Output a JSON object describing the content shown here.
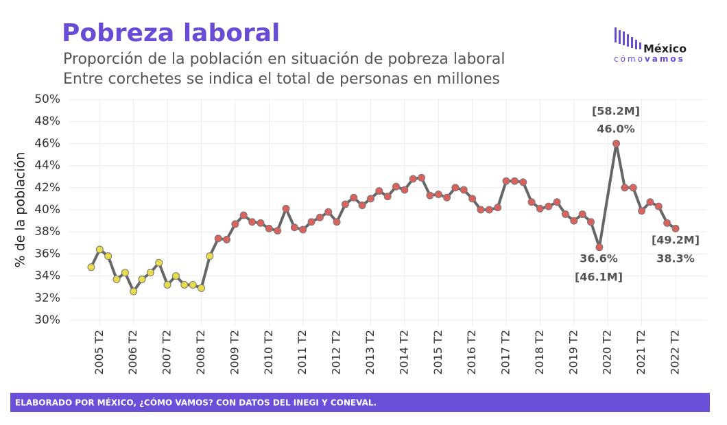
{
  "chart_data": {
    "type": "line",
    "title": "Pobreza laboral",
    "subtitle": [
      "Proporción de la población en situación de pobreza laboral",
      "Entre corchetes se indica el total de personas en millones"
    ],
    "y_label": "% de la población",
    "source": "ELABORADO POR MÉXICO, ¿CÓMO VAMOS? CON DATOS DEL INEGI Y CONEVAL.",
    "logo": {
      "name": "México",
      "tagline_light": "cómo",
      "tagline_bold": "vamos"
    },
    "categories": [
      null,
      "2005 T2",
      null,
      null,
      null,
      "2006 T2",
      null,
      null,
      null,
      "2007 T2",
      null,
      null,
      null,
      "2008 T2",
      null,
      null,
      null,
      "2009 T2",
      null,
      null,
      null,
      "2010 T2",
      null,
      null,
      null,
      "2011 T2",
      null,
      null,
      null,
      "2012 T2",
      null,
      null,
      null,
      "2013 T2",
      null,
      null,
      null,
      "2014 T2",
      null,
      null,
      null,
      "2015 T2",
      null,
      null,
      null,
      "2016 T2",
      null,
      null,
      null,
      "2017 T2",
      null,
      null,
      null,
      "2018 T2",
      null,
      null,
      null,
      "2019 T2",
      null,
      null,
      null,
      "2020 T2",
      null,
      null,
      null,
      "2021 T2",
      null,
      null,
      null,
      "2022 T2"
    ],
    "values": [
      34.8,
      36.4,
      35.8,
      33.7,
      34.3,
      32.6,
      33.7,
      34.3,
      35.2,
      33.2,
      34.0,
      33.2,
      33.2,
      32.9,
      35.8,
      37.4,
      37.3,
      38.7,
      39.5,
      38.9,
      38.8,
      38.3,
      38.1,
      40.1,
      38.4,
      38.2,
      38.9,
      39.3,
      39.8,
      38.9,
      40.5,
      41.1,
      40.4,
      41.0,
      41.7,
      41.2,
      42.1,
      41.8,
      42.8,
      42.9,
      41.3,
      41.4,
      41.1,
      42.0,
      41.8,
      41.0,
      40.0,
      40.0,
      40.2,
      42.6,
      42.6,
      42.5,
      40.7,
      40.1,
      40.3,
      40.7,
      39.6,
      39.0,
      39.6,
      38.9,
      36.6,
      null,
      46.0,
      42.0,
      42.0,
      39.9,
      40.7,
      40.3,
      38.8,
      38.3
    ],
    "line_color": "#666666",
    "marker_colors": [
      "#e6dc4e",
      "#e6dc4e",
      "#e6dc4e",
      "#e6dc4e",
      "#e6dc4e",
      "#e6dc4e",
      "#e6dc4e",
      "#e6dc4e",
      "#e6dc4e",
      "#e6dc4e",
      "#e6dc4e",
      "#e6dc4e",
      "#e6dc4e",
      "#e6dc4e",
      "#e6dc4e",
      "#d9625e",
      "#d9625e",
      "#d9625e",
      "#d9625e",
      "#d9625e",
      "#d9625e",
      "#d9625e",
      "#d9625e",
      "#d9625e",
      "#d9625e",
      "#d9625e",
      "#d9625e",
      "#d9625e",
      "#d9625e",
      "#d9625e",
      "#d9625e",
      "#d9625e",
      "#d9625e",
      "#d9625e",
      "#d9625e",
      "#d9625e",
      "#d9625e",
      "#d9625e",
      "#d9625e",
      "#d9625e",
      "#d9625e",
      "#d9625e",
      "#d9625e",
      "#d9625e",
      "#d9625e",
      "#d9625e",
      "#d9625e",
      "#d9625e",
      "#d9625e",
      "#d9625e",
      "#d9625e",
      "#d9625e",
      "#d9625e",
      "#d9625e",
      "#d9625e",
      "#d9625e",
      "#d9625e",
      "#d9625e",
      "#d9625e",
      "#d9625e",
      "#d9625e",
      "#d9625e",
      "#d9625e",
      "#d9625e",
      "#d9625e",
      "#d9625e",
      "#d9625e",
      "#d9625e",
      "#d9625e",
      "#d9625e"
    ],
    "annotations": [
      [
        "[58.2M]",
        "46.0%"
      ],
      [
        "36.6%",
        "[46.1M]"
      ],
      [
        "[49.2M]",
        "38.3%"
      ]
    ],
    "ylim": [
      30,
      50
    ],
    "yticks": [
      {
        "value": 30,
        "label": "30%"
      },
      {
        "value": 32,
        "label": "32%"
      },
      {
        "value": 34,
        "label": "34%"
      },
      {
        "value": 36,
        "label": "36%"
      },
      {
        "value": 38,
        "label": "38%"
      },
      {
        "value": 40,
        "label": "40%"
      },
      {
        "value": 42,
        "label": "42%"
      },
      {
        "value": 44,
        "label": "44%"
      },
      {
        "value": 46,
        "label": "46%"
      },
      {
        "value": 48,
        "label": "48%"
      },
      {
        "value": 50,
        "label": "50%"
      }
    ],
    "grid": true
  }
}
